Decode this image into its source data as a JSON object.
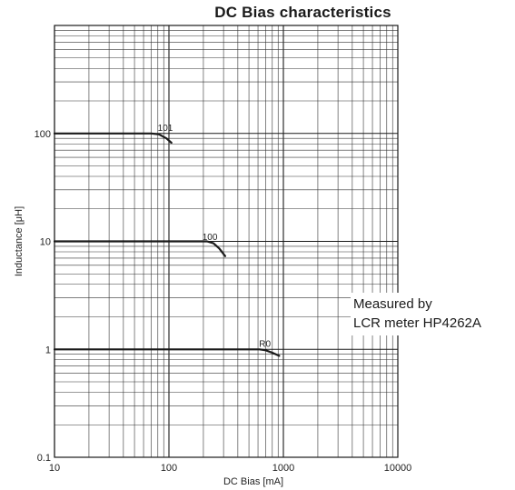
{
  "chart_data": {
    "type": "line",
    "title": "DC Bias characteristics",
    "xlabel": "DC Bias [mA]",
    "ylabel": "Inductance [μH]",
    "xscale": "log",
    "yscale": "log",
    "xlim": [
      10,
      10000
    ],
    "ylim": [
      0.1,
      1000
    ],
    "grid": true,
    "x_ticks": [
      "10",
      "100",
      "1000",
      "10000"
    ],
    "y_ticks": [
      "0.1",
      "1",
      "10",
      "100"
    ],
    "series": [
      {
        "name": "101",
        "points": [
          [
            10,
            100
          ],
          [
            70,
            100
          ],
          [
            82,
            98
          ],
          [
            95,
            90
          ],
          [
            105,
            82
          ]
        ],
        "label_at": [
          93,
          105
        ]
      },
      {
        "name": "100",
        "points": [
          [
            10,
            10
          ],
          [
            215,
            10
          ],
          [
            245,
            9.6
          ],
          [
            275,
            8.6
          ],
          [
            310,
            7.3
          ]
        ],
        "label_at": [
          228,
          10.3
        ]
      },
      {
        "name": "R0",
        "points": [
          [
            10,
            1
          ],
          [
            620,
            1
          ],
          [
            700,
            0.98
          ],
          [
            800,
            0.93
          ],
          [
            920,
            0.87
          ]
        ],
        "label_at": [
          690,
          1.05
        ]
      }
    ],
    "annotations": [
      "Measured by",
      "LCR meter HP4262A"
    ]
  },
  "colors": {
    "line": "#1a1a1a",
    "grid": "#333333",
    "background": "#ffffff"
  }
}
